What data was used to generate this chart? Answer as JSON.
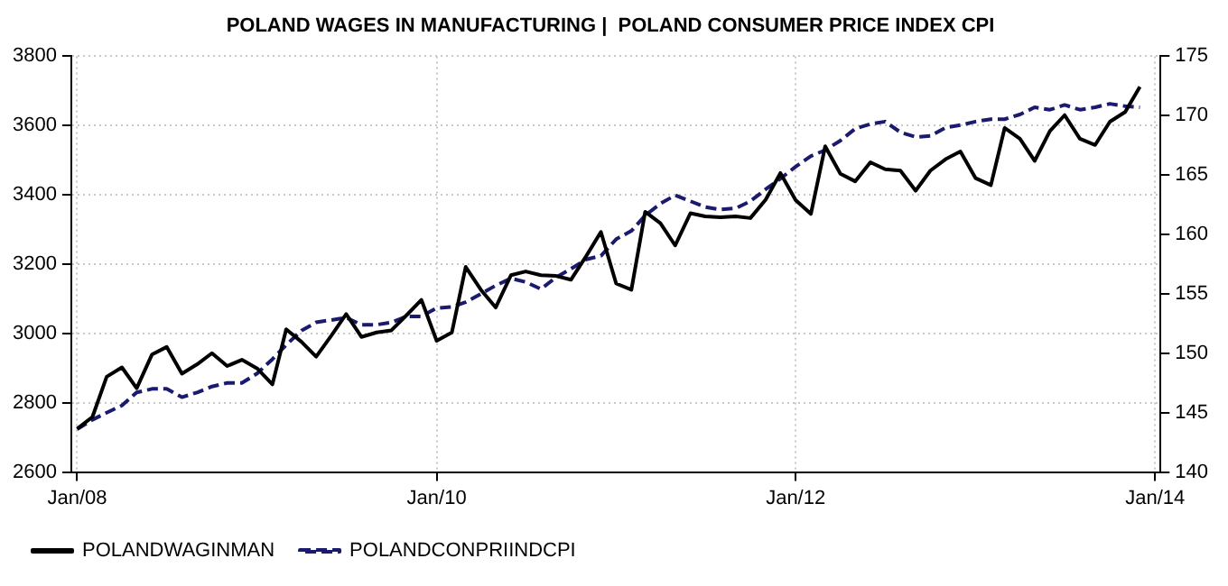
{
  "chart_data": {
    "type": "line",
    "title": "POLAND WAGES IN MANUFACTURING |  POLAND CONSUMER PRICE INDEX CPI",
    "x": [
      "2008-01",
      "2008-02",
      "2008-03",
      "2008-04",
      "2008-05",
      "2008-06",
      "2008-07",
      "2008-08",
      "2008-09",
      "2008-10",
      "2008-11",
      "2008-12",
      "2009-01",
      "2009-02",
      "2009-03",
      "2009-04",
      "2009-05",
      "2009-06",
      "2009-07",
      "2009-08",
      "2009-09",
      "2009-10",
      "2009-11",
      "2009-12",
      "2010-01",
      "2010-02",
      "2010-03",
      "2010-04",
      "2010-05",
      "2010-06",
      "2010-07",
      "2010-08",
      "2010-09",
      "2010-10",
      "2010-11",
      "2010-12",
      "2011-01",
      "2011-02",
      "2011-03",
      "2011-04",
      "2011-05",
      "2011-06",
      "2011-07",
      "2011-08",
      "2011-09",
      "2011-10",
      "2011-11",
      "2011-12",
      "2012-01",
      "2012-02",
      "2012-03",
      "2012-04",
      "2012-05",
      "2012-06",
      "2012-07",
      "2012-08",
      "2012-09",
      "2012-10",
      "2012-11",
      "2012-12",
      "2013-01",
      "2013-02",
      "2013-03",
      "2013-04",
      "2013-05",
      "2013-06",
      "2013-07",
      "2013-08",
      "2013-09",
      "2013-10",
      "2013-11",
      "2013-12"
    ],
    "series": [
      {
        "name": "POLANDWAGINMAN",
        "color": "#000000",
        "line_style": "solid",
        "values": [
          2725,
          2759,
          2875,
          2902,
          2842,
          2939,
          2961,
          2884,
          2911,
          2943,
          2906,
          2924,
          2899,
          2853,
          3012,
          2976,
          2933,
          2994,
          3056,
          2990,
          3003,
          3009,
          3053,
          3097,
          2979,
          3003,
          3192,
          3126,
          3075,
          3168,
          3179,
          3168,
          3166,
          3155,
          3223,
          3293,
          3144,
          3126,
          3351,
          3318,
          3254,
          3347,
          3338,
          3335,
          3338,
          3333,
          3386,
          3463,
          3385,
          3345,
          3540,
          3461,
          3439,
          3494,
          3474,
          3470,
          3412,
          3470,
          3503,
          3525,
          3448,
          3428,
          3593,
          3562,
          3498,
          3584,
          3630,
          3562,
          3544,
          3611,
          3639,
          3712
        ]
      },
      {
        "name": "POLANDCONPRIINDCPI",
        "color": "#1a1a6e",
        "line_style": "dashed",
        "axis": "y2",
        "values": [
          143.6,
          144.4,
          145.0,
          145.6,
          146.7,
          147.0,
          147.0,
          146.3,
          146.7,
          147.2,
          147.5,
          147.5,
          148.3,
          149.5,
          150.7,
          151.9,
          152.6,
          152.8,
          153.0,
          152.4,
          152.4,
          152.6,
          153.1,
          153.1,
          153.8,
          153.9,
          154.3,
          155.0,
          155.7,
          156.3,
          156.0,
          155.4,
          156.4,
          157.1,
          157.9,
          158.2,
          159.6,
          160.3,
          161.6,
          162.6,
          163.3,
          162.8,
          162.3,
          162.1,
          162.2,
          162.8,
          163.8,
          164.7,
          165.7,
          166.6,
          167.1,
          167.9,
          168.9,
          169.3,
          169.5,
          168.6,
          168.2,
          168.3,
          169.0,
          169.2,
          169.5,
          169.7,
          169.7,
          170.1,
          170.7,
          170.5,
          170.9,
          170.5,
          170.7,
          171.0,
          170.8,
          170.7
        ]
      }
    ],
    "xlim": [
      "2007-12-20",
      "2014-01-12"
    ],
    "xticks": [
      {
        "value": "2008-01",
        "label": "Jan/08"
      },
      {
        "value": "2010-01",
        "label": "Jan/10"
      },
      {
        "value": "2012-01",
        "label": "Jan/12"
      },
      {
        "value": "2014-01",
        "label": "Jan/14"
      }
    ],
    "ylim": [
      2600,
      3800
    ],
    "yticks": [
      2600,
      2800,
      3000,
      3200,
      3400,
      3600,
      3800
    ],
    "y2lim": [
      140,
      175
    ],
    "y2ticks": [
      140,
      145,
      150,
      155,
      160,
      165,
      170,
      175
    ],
    "grid": true,
    "legend": "bottom left",
    "marker": "none"
  }
}
